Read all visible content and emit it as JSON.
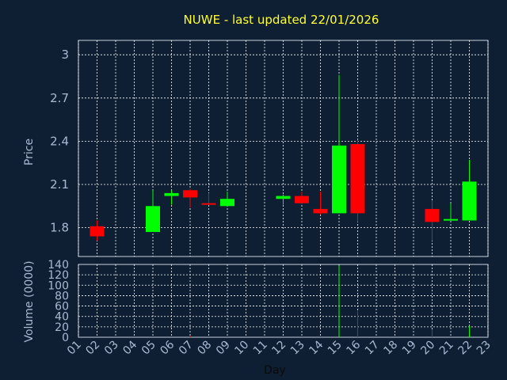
{
  "chart_data": {
    "type": "candlestick",
    "title": "NUWE - last updated 22/01/2026",
    "xlabel": "Day",
    "price_label": "Price",
    "volume_label": "Volume (0000)",
    "x_ticks": [
      "01",
      "02",
      "03",
      "04",
      "05",
      "06",
      "07",
      "08",
      "09",
      "10",
      "11",
      "12",
      "13",
      "14",
      "15",
      "16",
      "17",
      "18",
      "19",
      "20",
      "21",
      "22",
      "23"
    ],
    "price_ticks": [
      3,
      2.7,
      2.4,
      2.1,
      1.8
    ],
    "price_tick_labels": [
      "3",
      "2.7",
      "2.4",
      "2.1",
      "1.8"
    ],
    "price_range": [
      1.6,
      3.1
    ],
    "volume_ticks": [
      140,
      120,
      100,
      80,
      60,
      40,
      20,
      0
    ],
    "volume_range": [
      0,
      140
    ],
    "grid": true,
    "colors": {
      "up": "#00ff00",
      "down": "#ff0000",
      "background": "#0e1f33",
      "grid": "#ffffff",
      "title": "#ffff33",
      "axis_text": "#a9b9d3"
    },
    "candles": [
      {
        "day": "02",
        "open": 1.81,
        "high": 1.85,
        "low": 1.71,
        "close": 1.74,
        "volume": 0
      },
      {
        "day": "05",
        "open": 1.77,
        "high": 2.06,
        "low": 1.77,
        "close": 1.95,
        "volume": 0
      },
      {
        "day": "06",
        "open": 2.02,
        "high": 2.06,
        "low": 1.96,
        "close": 2.04,
        "volume": 0
      },
      {
        "day": "07",
        "open": 2.06,
        "high": 2.07,
        "low": 1.94,
        "close": 2.01,
        "volume": 3
      },
      {
        "day": "08",
        "open": 1.97,
        "high": 2.04,
        "low": 1.96,
        "close": 1.96,
        "volume": 0
      },
      {
        "day": "09",
        "open": 1.95,
        "high": 2.05,
        "low": 1.95,
        "close": 2.0,
        "volume": 0
      },
      {
        "day": "12",
        "open": 2.0,
        "high": 2.03,
        "low": 1.96,
        "close": 2.02,
        "volume": 0
      },
      {
        "day": "13",
        "open": 2.02,
        "high": 2.05,
        "low": 1.97,
        "close": 1.97,
        "volume": 0
      },
      {
        "day": "14",
        "open": 1.93,
        "high": 2.05,
        "low": 1.89,
        "close": 1.9,
        "volume": 0
      },
      {
        "day": "15",
        "open": 1.9,
        "high": 2.86,
        "low": 1.9,
        "close": 2.37,
        "volume": 138
      },
      {
        "day": "16",
        "open": 2.38,
        "high": 2.41,
        "low": 1.84,
        "close": 1.9,
        "volume": 50
      },
      {
        "day": "20",
        "open": 1.93,
        "high": 1.99,
        "low": 1.71,
        "close": 1.84,
        "volume": 15
      },
      {
        "day": "21",
        "open": 1.85,
        "high": 1.97,
        "low": 1.85,
        "close": 1.86,
        "volume": 0
      },
      {
        "day": "22",
        "open": 1.85,
        "high": 2.27,
        "low": 1.85,
        "close": 2.12,
        "volume": 22
      }
    ]
  }
}
